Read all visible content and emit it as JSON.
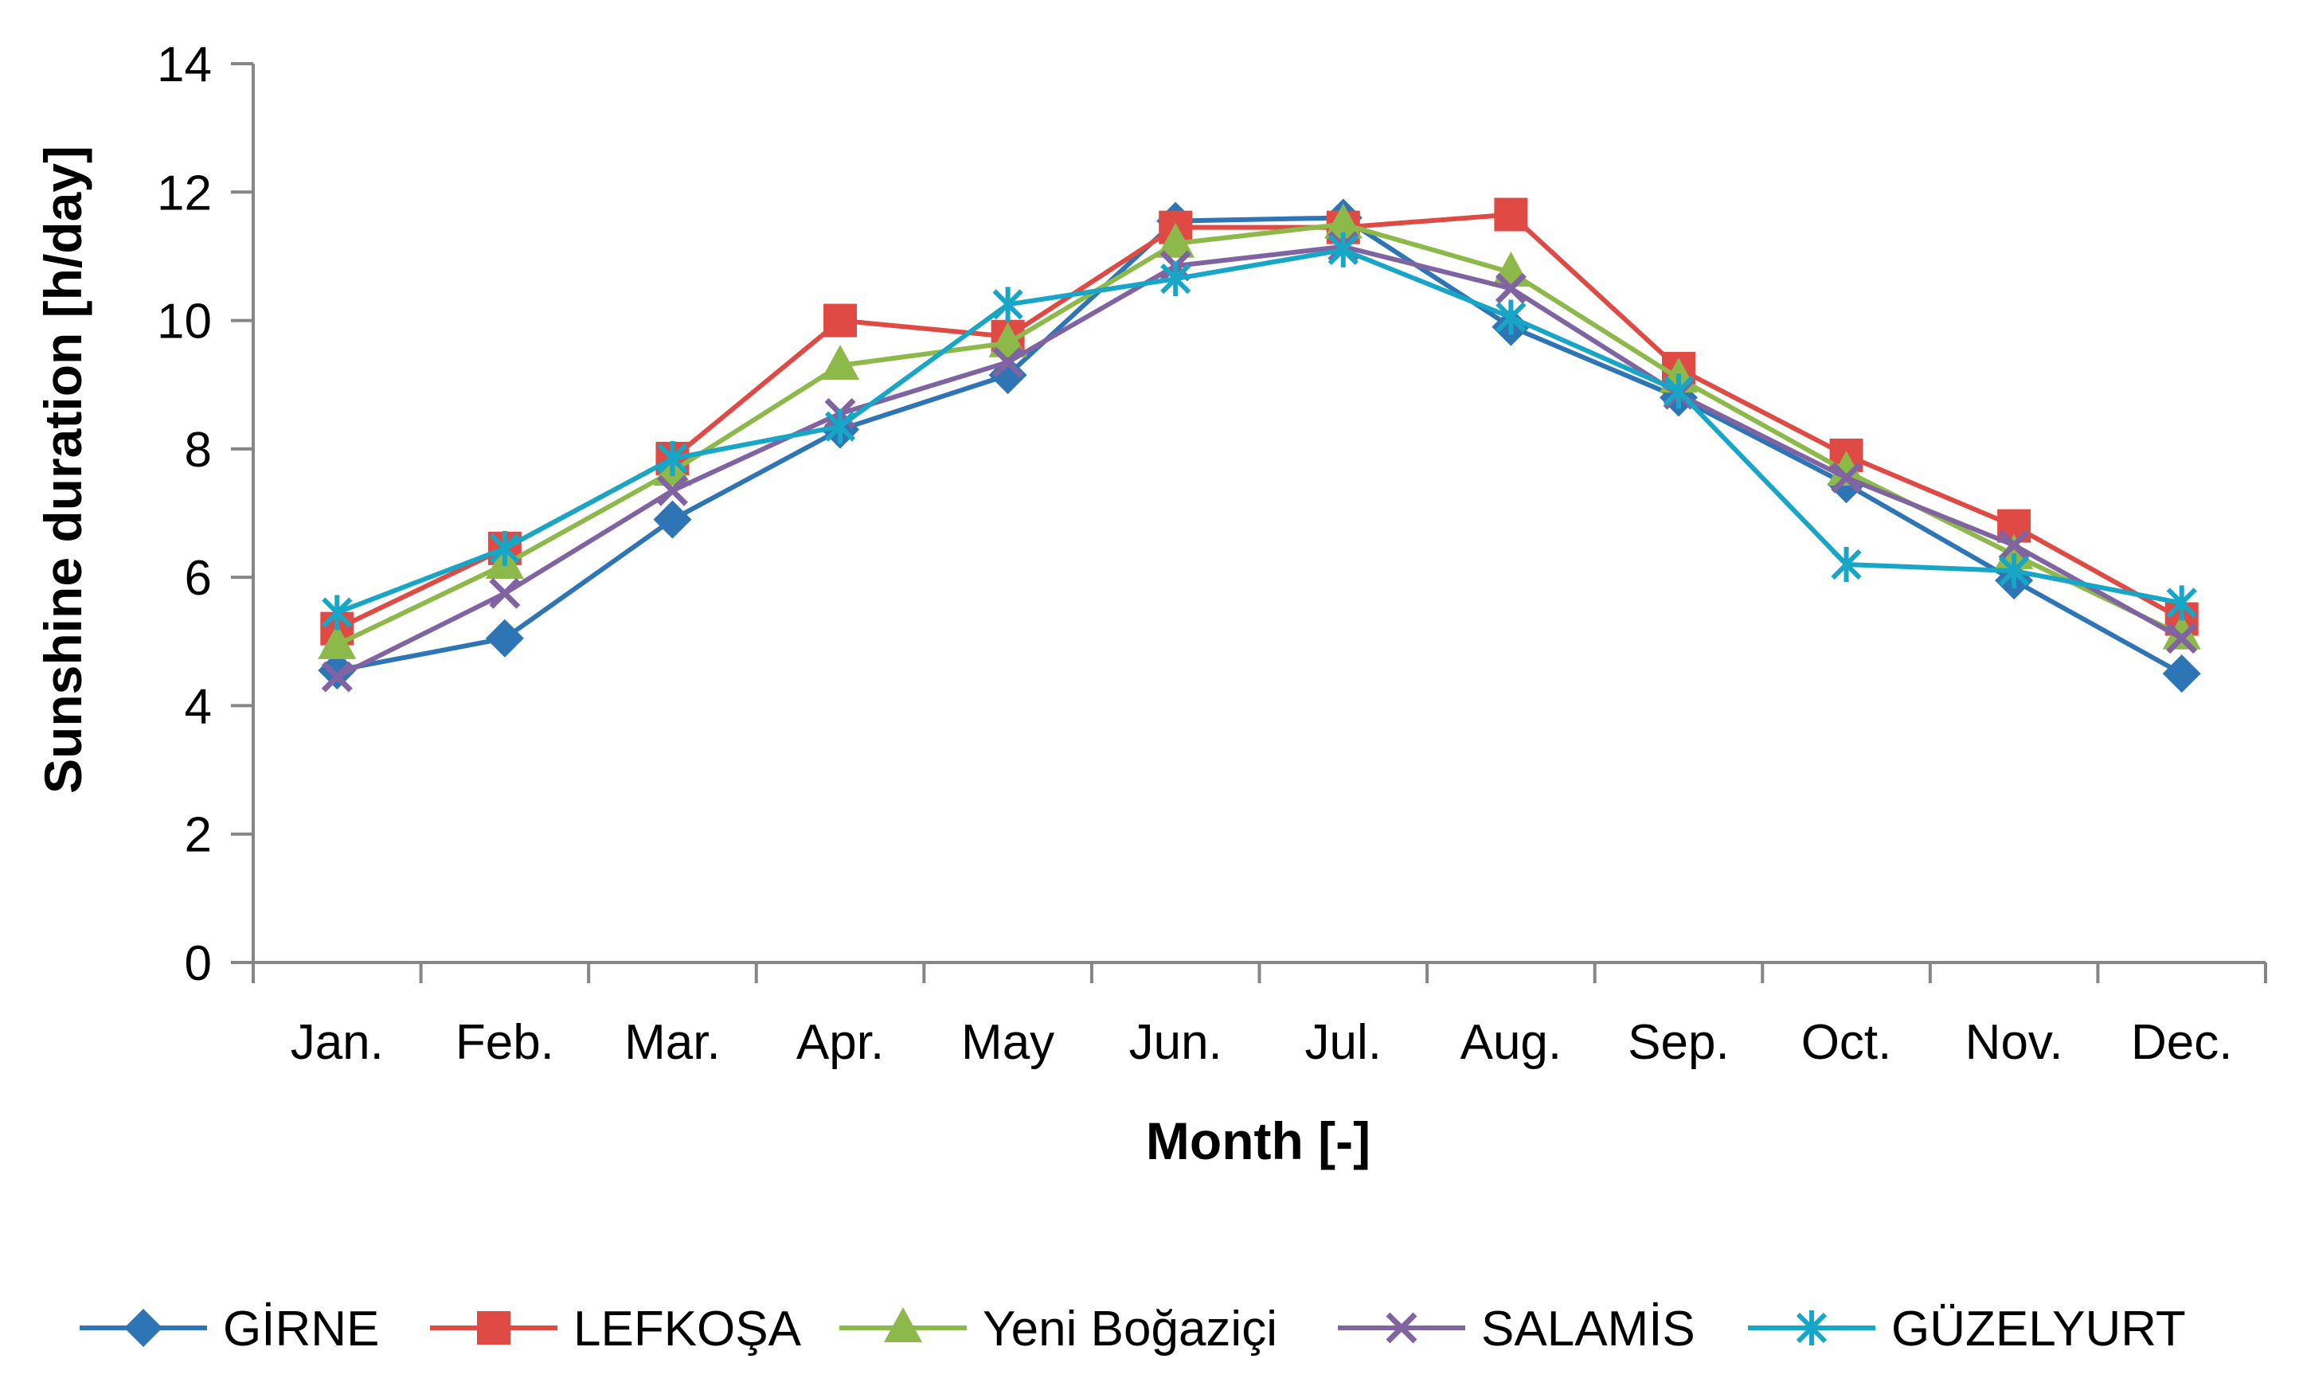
{
  "chart_data": {
    "type": "line",
    "title": "",
    "xlabel": "Month [-]",
    "ylabel": "Sunshine duration [h/day]",
    "ylim": [
      0,
      14
    ],
    "yticks": [
      "0",
      "2",
      "4",
      "6",
      "8",
      "10",
      "12",
      "14"
    ],
    "grid": false,
    "legend_position": "bottom",
    "categories": [
      "Jan.",
      "Feb.",
      "Mar.",
      "Apr.",
      "May",
      "Jun.",
      "Jul.",
      "Aug.",
      "Sep.",
      "Oct.",
      "Nov.",
      "Dec."
    ],
    "series": [
      {
        "name": "GİRNE",
        "color": "#2E75B6",
        "marker": "diamond",
        "values": [
          4.55,
          5.05,
          6.9,
          8.3,
          9.15,
          11.55,
          11.6,
          9.9,
          8.8,
          7.45,
          5.95,
          4.5
        ]
      },
      {
        "name": "LEFKOŞA",
        "color": "#E04A45",
        "marker": "square",
        "values": [
          5.2,
          6.45,
          7.85,
          10.0,
          9.75,
          11.45,
          11.45,
          11.65,
          9.25,
          7.9,
          6.8,
          5.35
        ]
      },
      {
        "name": "Yeni Boğaziçi",
        "color": "#8DB84A",
        "marker": "triangle",
        "values": [
          4.95,
          6.2,
          7.65,
          9.3,
          9.65,
          11.2,
          11.5,
          10.75,
          9.1,
          7.65,
          6.35,
          5.1
        ]
      },
      {
        "name": "SALAMİS",
        "color": "#8064A2",
        "marker": "x",
        "values": [
          4.45,
          5.75,
          7.35,
          8.55,
          9.35,
          10.85,
          11.15,
          10.5,
          8.85,
          7.55,
          6.5,
          5.05
        ]
      },
      {
        "name": "GÜZELYURT",
        "color": "#17A6C6",
        "marker": "star",
        "values": [
          5.45,
          6.45,
          7.85,
          8.35,
          10.25,
          10.65,
          11.1,
          10.05,
          8.9,
          6.2,
          6.1,
          5.6
        ]
      }
    ]
  }
}
